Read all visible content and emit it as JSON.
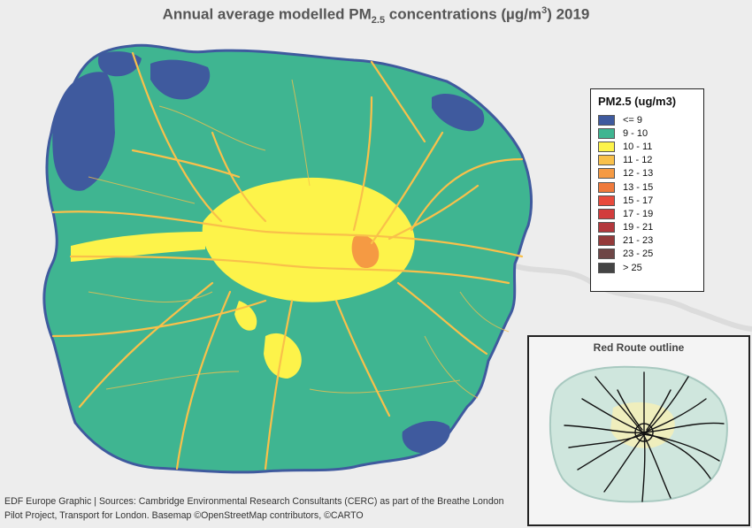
{
  "title": {
    "prefix": "Annual average modelled PM",
    "subscript": "2.5",
    "middle": " concentrations (µg/m",
    "superscript": "3",
    "suffix": ") 2019"
  },
  "legend": {
    "title": "PM2.5 (ug/m3)",
    "classes": [
      {
        "label": "<= 9",
        "color": "#3f5a9e"
      },
      {
        "label": "9 - 10",
        "color": "#3fb591"
      },
      {
        "label": "10 - 11",
        "color": "#fdf34a"
      },
      {
        "label": "11 - 12",
        "color": "#f9c04a"
      },
      {
        "label": "12 - 13",
        "color": "#f59a43"
      },
      {
        "label": "13 - 15",
        "color": "#ef7a3c"
      },
      {
        "label": "15 - 17",
        "color": "#e84a3c"
      },
      {
        "label": "17 - 19",
        "color": "#d23c3c"
      },
      {
        "label": "19 - 21",
        "color": "#b3383c"
      },
      {
        "label": "21 - 23",
        "color": "#943a3a"
      },
      {
        "label": "23 - 25",
        "color": "#6e4646"
      },
      {
        "label": "> 25",
        "color": "#444444"
      }
    ]
  },
  "inset": {
    "title": "Red Route outline"
  },
  "credits": {
    "line1": "EDF Europe Graphic | Sources: Cambridge Environmental Research Consultants (CERC) as part of the Breathe London",
    "line2": "Pilot Project, Transport for London. Basemap ©OpenStreetMap contributors, ©CARTO"
  }
}
